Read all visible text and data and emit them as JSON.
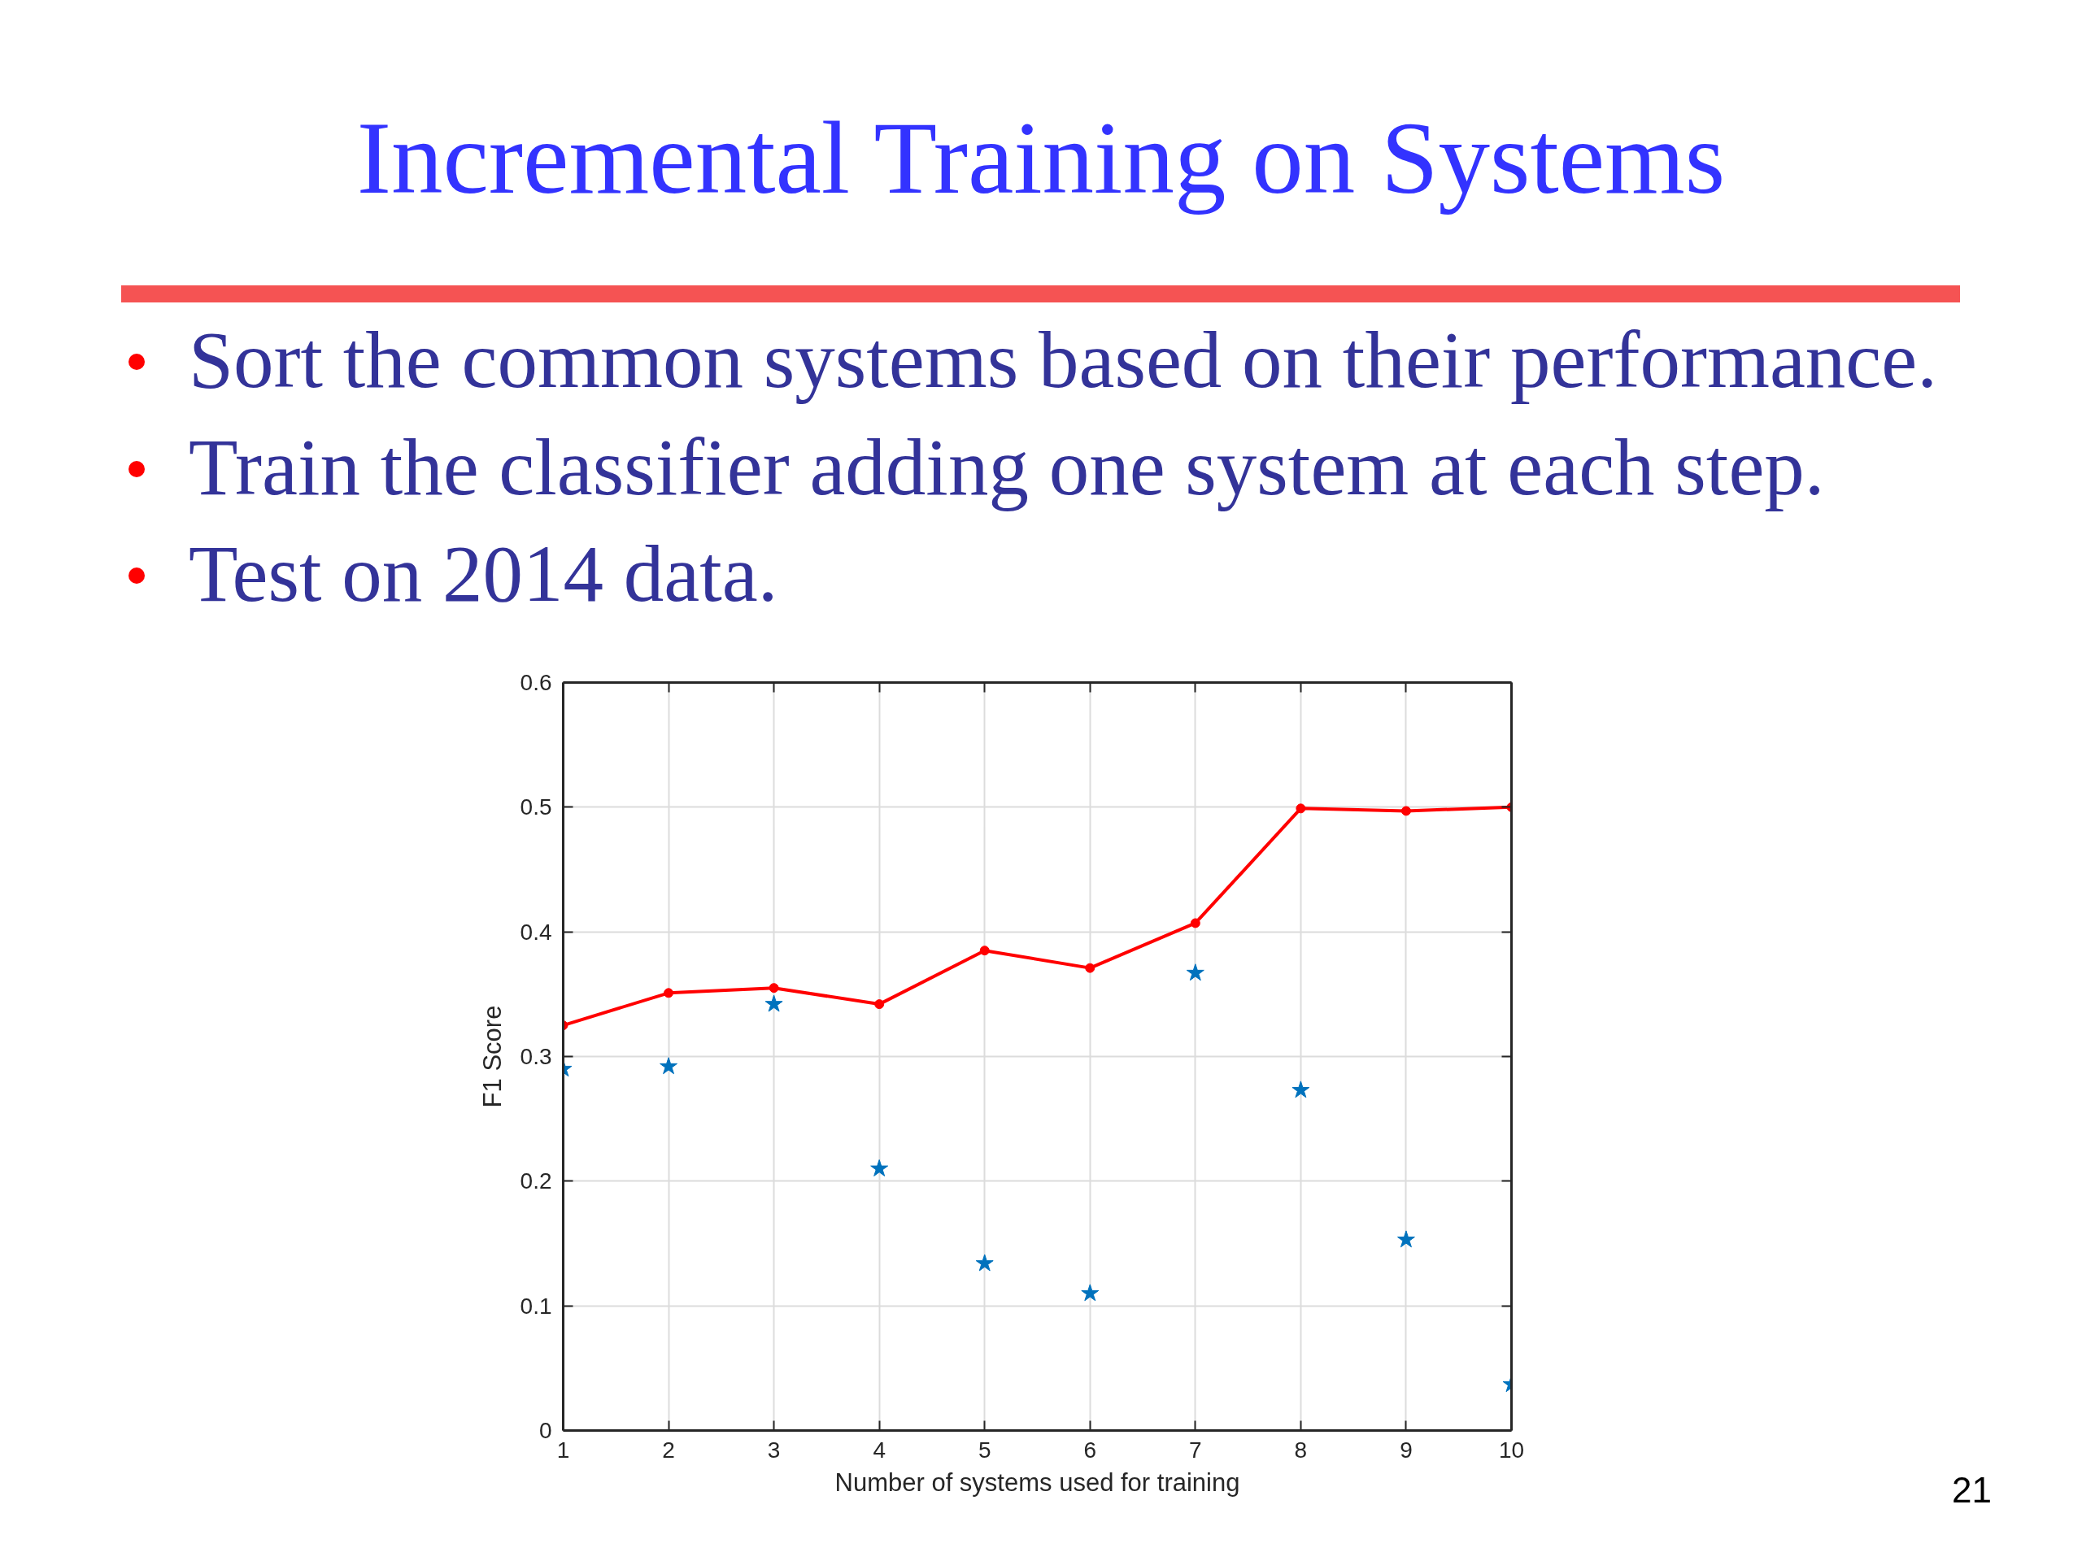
{
  "chart_data": {
    "type": "line",
    "title": "Incremental Training on Systems",
    "annotations": [
      "Sort the common systems based on their performance.",
      "Train the classifier adding one system at each step.",
      "Test on 2014 data.",
      "21"
    ],
    "xlabel": "Number of systems used for training",
    "ylabel": "F1 Score",
    "x": [
      1,
      2,
      3,
      4,
      5,
      6,
      7,
      8,
      9,
      10
    ],
    "series": [
      {
        "color": "#ff0000",
        "marker": "circle",
        "line_style": "solid",
        "values": [
          0.325,
          0.351,
          0.355,
          0.342,
          0.385,
          0.371,
          0.407,
          0.499,
          0.497,
          0.5
        ]
      },
      {
        "type": "scatter",
        "color": "#0072bd",
        "marker": "star",
        "values": [
          0.29,
          0.292,
          0.342,
          0.21,
          0.134,
          0.11,
          0.367,
          0.273,
          0.153,
          0.037
        ]
      }
    ],
    "xlim": [
      1,
      10
    ],
    "ylim": [
      0,
      0.6
    ],
    "xticks": [
      1,
      2,
      3,
      4,
      5,
      6,
      7,
      8,
      9,
      10
    ],
    "yticks": [
      0,
      0.1,
      0.2,
      0.3,
      0.4,
      0.5,
      0.6
    ],
    "grid": true
  }
}
